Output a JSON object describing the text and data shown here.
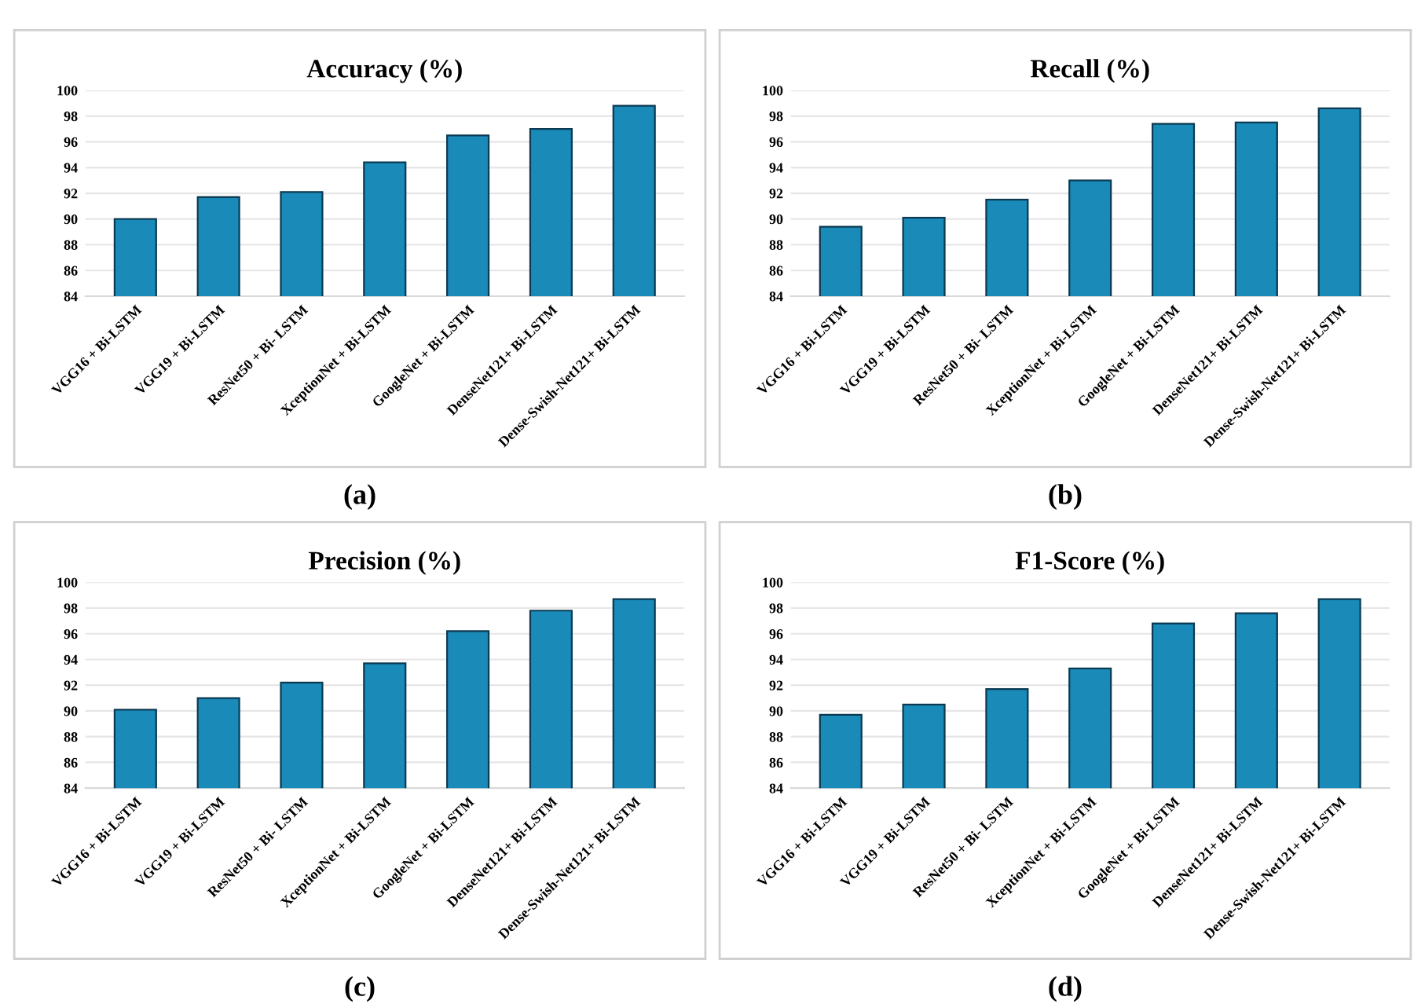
{
  "chart_data": [
    {
      "type": "bar",
      "title": "Accuracy (%)",
      "categories": [
        "VGG16 + Bi-LSTM",
        "VGG19 + Bi-LSTM",
        "ResNet50 + Bi- LSTM",
        "XceptionNet + Bi-LSTM",
        "GoogleNet + Bi-LSTM",
        "DenseNet121+ Bi-LSTM",
        "Dense-Swish-Net121+ Bi-LSTM"
      ],
      "values": [
        90.0,
        91.7,
        92.1,
        94.4,
        96.5,
        97.0,
        98.8
      ],
      "color": "#1a8ab8",
      "ylim": [
        84,
        100
      ],
      "yticks": [
        84,
        86,
        88,
        90,
        92,
        94,
        96,
        98,
        100
      ],
      "grid": "y",
      "annotations": [
        "(a)"
      ]
    },
    {
      "type": "bar",
      "title": "Recall (%)",
      "categories": [
        "VGG16 + Bi-LSTM",
        "VGG19 + Bi-LSTM",
        "ResNet50 + Bi- LSTM",
        "XceptionNet + Bi-LSTM",
        "GoogleNet + Bi-LSTM",
        "DenseNet121+ Bi-LSTM",
        "Dense-Swish-Net121+ Bi-LSTM"
      ],
      "values": [
        89.4,
        90.1,
        91.5,
        93.0,
        97.4,
        97.5,
        98.6
      ],
      "color": "#1a8ab8",
      "ylim": [
        84,
        100
      ],
      "yticks": [
        84,
        86,
        88,
        90,
        92,
        94,
        96,
        98,
        100
      ],
      "grid": "y",
      "annotations": [
        "(b)"
      ]
    },
    {
      "type": "bar",
      "title": "Precision (%)",
      "categories": [
        "VGG16 + Bi-LSTM",
        "VGG19 + Bi-LSTM",
        "ResNet50 + Bi- LSTM",
        "XceptionNet + Bi-LSTM",
        "GoogleNet + Bi-LSTM",
        "DenseNet121+ Bi-LSTM",
        "Dense-Swish-Net121+ Bi-LSTM"
      ],
      "values": [
        90.1,
        91.0,
        92.2,
        93.7,
        96.2,
        97.8,
        98.7
      ],
      "color": "#1a8ab8",
      "ylim": [
        84,
        100
      ],
      "yticks": [
        84,
        86,
        88,
        90,
        92,
        94,
        96,
        98,
        100
      ],
      "grid": "y",
      "annotations": [
        "(c)"
      ]
    },
    {
      "type": "bar",
      "title": "F1-Score (%)",
      "categories": [
        "VGG16 + Bi-LSTM",
        "VGG19 + Bi-LSTM",
        "ResNet50 + Bi- LSTM",
        "XceptionNet + Bi-LSTM",
        "GoogleNet + Bi-LSTM",
        "DenseNet121+ Bi-LSTM",
        "Dense-Swish-Net121+ Bi-LSTM"
      ],
      "values": [
        89.7,
        90.5,
        91.7,
        93.3,
        96.8,
        97.6,
        98.7
      ],
      "color": "#1a8ab8",
      "ylim": [
        84,
        100
      ],
      "yticks": [
        84,
        86,
        88,
        90,
        92,
        94,
        96,
        98,
        100
      ],
      "grid": "y",
      "annotations": [
        "(d)"
      ]
    }
  ]
}
